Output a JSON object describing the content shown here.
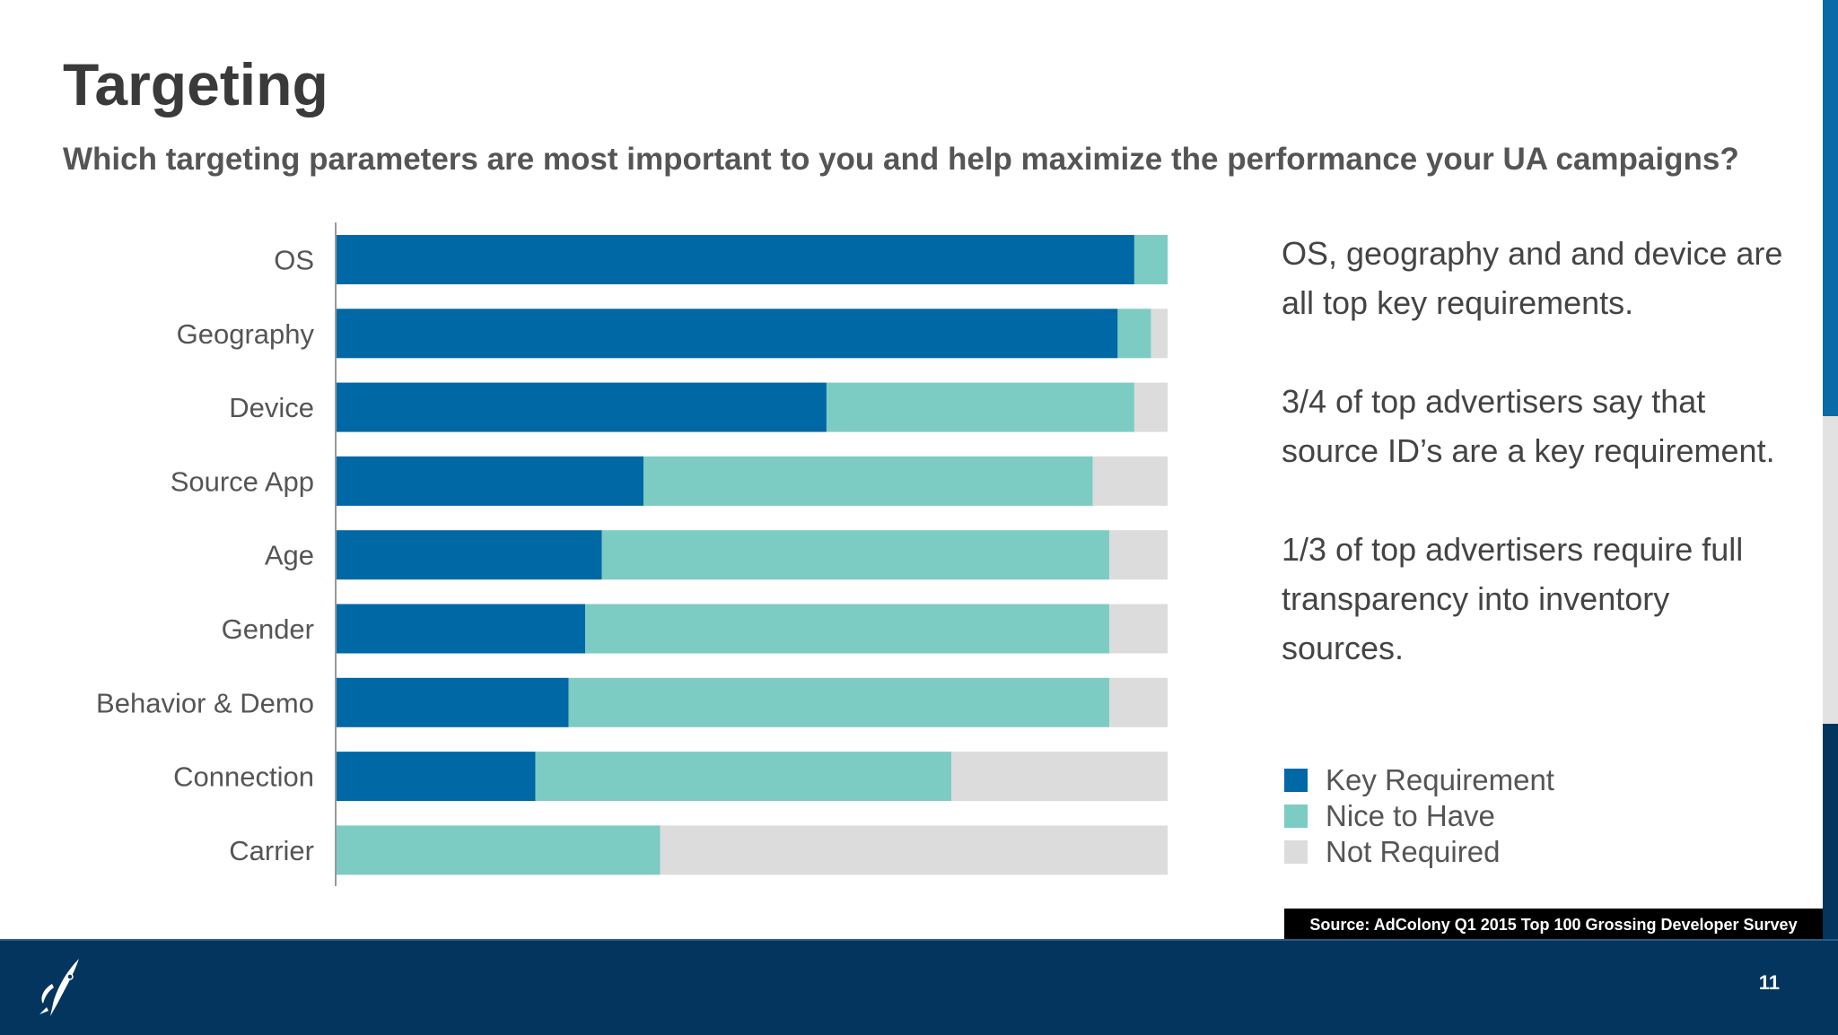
{
  "title": "Targeting",
  "subtitle": "Which targeting parameters are most important to you and help maximize the performance your UA campaigns?",
  "notes": [
    "OS, geography and and device are all top key requirements.",
    "3/4 of top advertisers say that source ID’s are a key requirement.",
    "1/3 of top advertisers require full transparency into inventory sources."
  ],
  "source": "Source: AdColony Q1 2015 Top 100 Grossing Developer Survey",
  "page_number": "11",
  "logo_icon": "rocket-icon",
  "colors": {
    "key": "#0068a5",
    "nice": "#7cccc4",
    "not": "#dcdcdc",
    "footer": "#04355e"
  },
  "chart_data": {
    "type": "bar",
    "orientation": "horizontal",
    "stacked": true,
    "unit": "percent",
    "xlim": [
      0,
      100
    ],
    "grid": false,
    "legend_placement": "right",
    "categories": [
      "OS",
      "Geography",
      "Device",
      "Source App",
      "Age",
      "Gender",
      "Behavior & Demo",
      "Connection",
      "Carrier"
    ],
    "series": [
      {
        "name": "Key Requirement",
        "color": "#0068a5",
        "values": [
          96,
          94,
          59,
          37,
          32,
          30,
          28,
          24,
          0
        ]
      },
      {
        "name": "Nice to Have",
        "color": "#7cccc4",
        "values": [
          4,
          4,
          37,
          54,
          61,
          63,
          65,
          50,
          39
        ]
      },
      {
        "name": "Not Required",
        "color": "#dcdcdc",
        "values": [
          0,
          2,
          4,
          9,
          7,
          7,
          7,
          26,
          61
        ]
      }
    ]
  }
}
